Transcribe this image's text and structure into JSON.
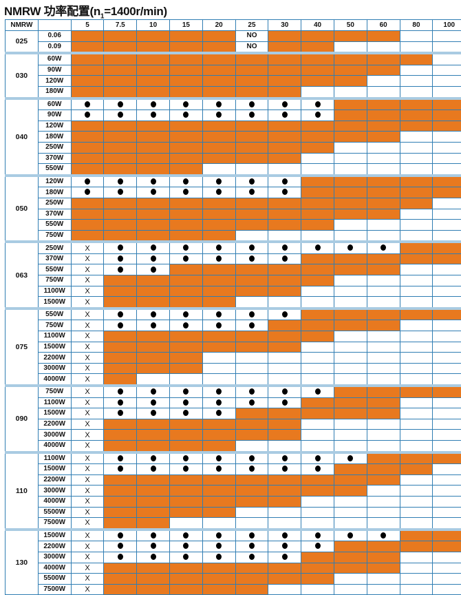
{
  "title": {
    "prefix": "NMRW 功率配置(n",
    "sub": "1",
    "suffix": "=1400r/min)"
  },
  "colors": {
    "filled": "#e8791f",
    "border": "#2f7db3",
    "group_separator": "#a9cbe2"
  },
  "legend_codes": {
    "O": "orange-filled",
    ".": "empty",
    "D": "dot",
    "X": "X",
    "N": "NO"
  },
  "header": {
    "model": "NMRW",
    "power": "",
    "ratios": [
      "5",
      "7.5",
      "10",
      "15",
      "20",
      "25",
      "30",
      "40",
      "50",
      "60",
      "80",
      "100"
    ]
  },
  "cell_text": {
    "X": "X",
    "N": "NO"
  },
  "groups": [
    {
      "model": "025",
      "rows": [
        {
          "power": "0.06",
          "cells": "OOOOONOOOO.."
        },
        {
          "power": "0.09",
          "cells": "OOOOONOO...."
        }
      ]
    },
    {
      "model": "030",
      "rows": [
        {
          "power": "60W",
          "cells": "OOOOOOOOOOO."
        },
        {
          "power": "90W",
          "cells": "OOOOOOOOOO.."
        },
        {
          "power": "120W",
          "cells": "OOOOOOOOO..."
        },
        {
          "power": "180W",
          "cells": "OOOOOOO....."
        }
      ]
    },
    {
      "model": "040",
      "rows": [
        {
          "power": "60W",
          "cells": "DDDDDDDDOOOO"
        },
        {
          "power": "90W",
          "cells": "DDDDDDDDOOOO"
        },
        {
          "power": "120W",
          "cells": "OOOOOOOOOOOO"
        },
        {
          "power": "180W",
          "cells": "OOOOOOOOOO.."
        },
        {
          "power": "250W",
          "cells": "OOOOOOOO...."
        },
        {
          "power": "370W",
          "cells": "OOOOOOO....."
        },
        {
          "power": "550W",
          "cells": "OOOO........"
        }
      ]
    },
    {
      "model": "050",
      "rows": [
        {
          "power": "120W",
          "cells": "DDDDDDDOOOOO"
        },
        {
          "power": "180W",
          "cells": "DDDDDDDOOOOO"
        },
        {
          "power": "250W",
          "cells": "OOOOOOOOOOO."
        },
        {
          "power": "370W",
          "cells": "OOOOOOOOOO.."
        },
        {
          "power": "550W",
          "cells": "OOOOOOOO...."
        },
        {
          "power": "750W",
          "cells": "OOOOO......."
        }
      ]
    },
    {
      "model": "063",
      "rows": [
        {
          "power": "250W",
          "cells": "XDDDDDDDDDOO"
        },
        {
          "power": "370W",
          "cells": "XDDDDDDOOOOO"
        },
        {
          "power": "550W",
          "cells": "XDDOOOOOOO.."
        },
        {
          "power": "750W",
          "cells": "XOOOOOOO...."
        },
        {
          "power": "1100W",
          "cells": "XOOOOOO....."
        },
        {
          "power": "1500W",
          "cells": "XOOOO......."
        }
      ]
    },
    {
      "model": "075",
      "rows": [
        {
          "power": "550W",
          "cells": "XDDDDDDOOOOO"
        },
        {
          "power": "750W",
          "cells": "XDDDDDOOOO.."
        },
        {
          "power": "1100W",
          "cells": "XOOOOOOO...."
        },
        {
          "power": "1500W",
          "cells": "XOOOOOO....."
        },
        {
          "power": "2200W",
          "cells": "XOOO........"
        },
        {
          "power": "3000W",
          "cells": "XOOO........"
        },
        {
          "power": "4000W",
          "cells": "XO.........."
        }
      ]
    },
    {
      "model": "090",
      "rows": [
        {
          "power": "750W",
          "cells": "XDDDDDDDOOOO"
        },
        {
          "power": "1100W",
          "cells": "XDDDDDDOOO.."
        },
        {
          "power": "1500W",
          "cells": "XDDDDOOOOO.."
        },
        {
          "power": "2200W",
          "cells": "XOOOOOO....."
        },
        {
          "power": "3000W",
          "cells": "XOOOOOO....."
        },
        {
          "power": "4000W",
          "cells": "XOOOO......."
        }
      ]
    },
    {
      "model": "110",
      "rows": [
        {
          "power": "1100W",
          "cells": "XDDDDDDDDOOO"
        },
        {
          "power": "1500W",
          "cells": "XDDDDDDDOOO."
        },
        {
          "power": "2200W",
          "cells": "XOOOOOOOOO.."
        },
        {
          "power": "3000W",
          "cells": "XOOOOOOOO..."
        },
        {
          "power": "4000W",
          "cells": "XOOOOOO....."
        },
        {
          "power": "5500W",
          "cells": "XOOOO......."
        },
        {
          "power": "7500W",
          "cells": "XOO........."
        }
      ]
    },
    {
      "model": "130",
      "rows": [
        {
          "power": "1500W",
          "cells": "XDDDDDDDDDOO"
        },
        {
          "power": "2200W",
          "cells": "XDDDDDDDOOOO"
        },
        {
          "power": "3000W",
          "cells": "XDDDDDDOOO.."
        },
        {
          "power": "4000W",
          "cells": "XOOOOOOOOO.."
        },
        {
          "power": "5500W",
          "cells": "XOOOOOOO...."
        },
        {
          "power": "7500W",
          "cells": "XOOOOO......"
        }
      ]
    }
  ]
}
